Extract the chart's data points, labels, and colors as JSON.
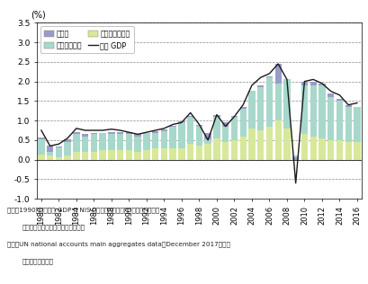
{
  "years": [
    1980,
    1981,
    1982,
    1983,
    1984,
    1985,
    1986,
    1987,
    1988,
    1989,
    1990,
    1991,
    1992,
    1993,
    1994,
    1995,
    1996,
    1997,
    1998,
    1999,
    2000,
    2001,
    2002,
    2003,
    2004,
    2005,
    2006,
    2007,
    2008,
    2009,
    2010,
    2011,
    2012,
    2013,
    2014,
    2015,
    2016
  ],
  "net_exports": [
    -0.05,
    -0.15,
    0.02,
    0.08,
    0.05,
    -0.05,
    0.02,
    0.02,
    -0.05,
    -0.05,
    -0.05,
    -0.05,
    0.0,
    -0.05,
    0.05,
    0.02,
    0.02,
    0.02,
    0.02,
    -0.15,
    0.05,
    -0.1,
    0.02,
    0.05,
    0.02,
    -0.05,
    0.02,
    -0.5,
    0.02,
    -0.05,
    -0.1,
    -0.1,
    0.05,
    0.1,
    0.05,
    -0.05,
    0.0
  ],
  "final_consumption": [
    0.45,
    0.25,
    0.25,
    0.35,
    0.45,
    0.45,
    0.45,
    0.42,
    0.45,
    0.45,
    0.45,
    0.45,
    0.42,
    0.42,
    0.42,
    0.55,
    0.65,
    0.7,
    0.52,
    0.28,
    0.55,
    0.5,
    0.6,
    0.7,
    0.95,
    1.15,
    1.25,
    1.45,
    1.25,
    -0.05,
    1.35,
    1.4,
    1.35,
    1.1,
    1.0,
    0.95,
    0.9
  ],
  "gross_fixed_capital": [
    0.12,
    0.1,
    0.06,
    0.1,
    0.2,
    0.2,
    0.2,
    0.25,
    0.25,
    0.25,
    0.25,
    0.2,
    0.25,
    0.3,
    0.3,
    0.3,
    0.3,
    0.4,
    0.35,
    0.4,
    0.55,
    0.45,
    0.5,
    0.6,
    0.8,
    0.75,
    0.85,
    1.0,
    0.8,
    0.1,
    0.65,
    0.6,
    0.55,
    0.5,
    0.5,
    0.45,
    0.45
  ],
  "real_gdp_line": [
    0.75,
    0.35,
    0.4,
    0.55,
    0.8,
    0.75,
    0.75,
    0.75,
    0.78,
    0.75,
    0.7,
    0.65,
    0.7,
    0.75,
    0.8,
    0.9,
    0.95,
    1.2,
    0.9,
    0.5,
    1.15,
    0.85,
    1.1,
    1.4,
    1.9,
    2.1,
    2.2,
    2.45,
    2.05,
    -0.6,
    2.0,
    2.05,
    1.95,
    1.75,
    1.65,
    1.4,
    1.45
  ],
  "color_net_exports": "#9b9bc8",
  "color_final_consumption": "#a8d8cc",
  "color_gross_fixed": "#d8e89a",
  "color_gdp_line": "#1a1a1a",
  "ylim_min": -1.0,
  "ylim_max": 3.5,
  "yticks": [
    -1.0,
    -0.5,
    0.0,
    0.5,
    1.0,
    1.5,
    2.0,
    2.5,
    3.0,
    3.5
  ],
  "ytick_labels": [
    "-1.0",
    "-0.5",
    "0.0",
    "0.5",
    "1.0",
    "1.5",
    "2.0",
    "2.5",
    "3.0",
    "3.5"
  ],
  "legend_labels": [
    "純輸出",
    "最終消費支出",
    "総固定資本形成",
    "実質 GDP"
  ],
  "ylabel_text": "(%)",
  "note1": "備考：1990年から実質 GDP は NIS 諸国の統計データが加算され、見かけ",
  "note2": "上成長率が大きく見えるため除外。",
  "source1": "資料：UN national accounts main aggregates data（December 2017）から",
  "source2": "経済産業省作成。"
}
